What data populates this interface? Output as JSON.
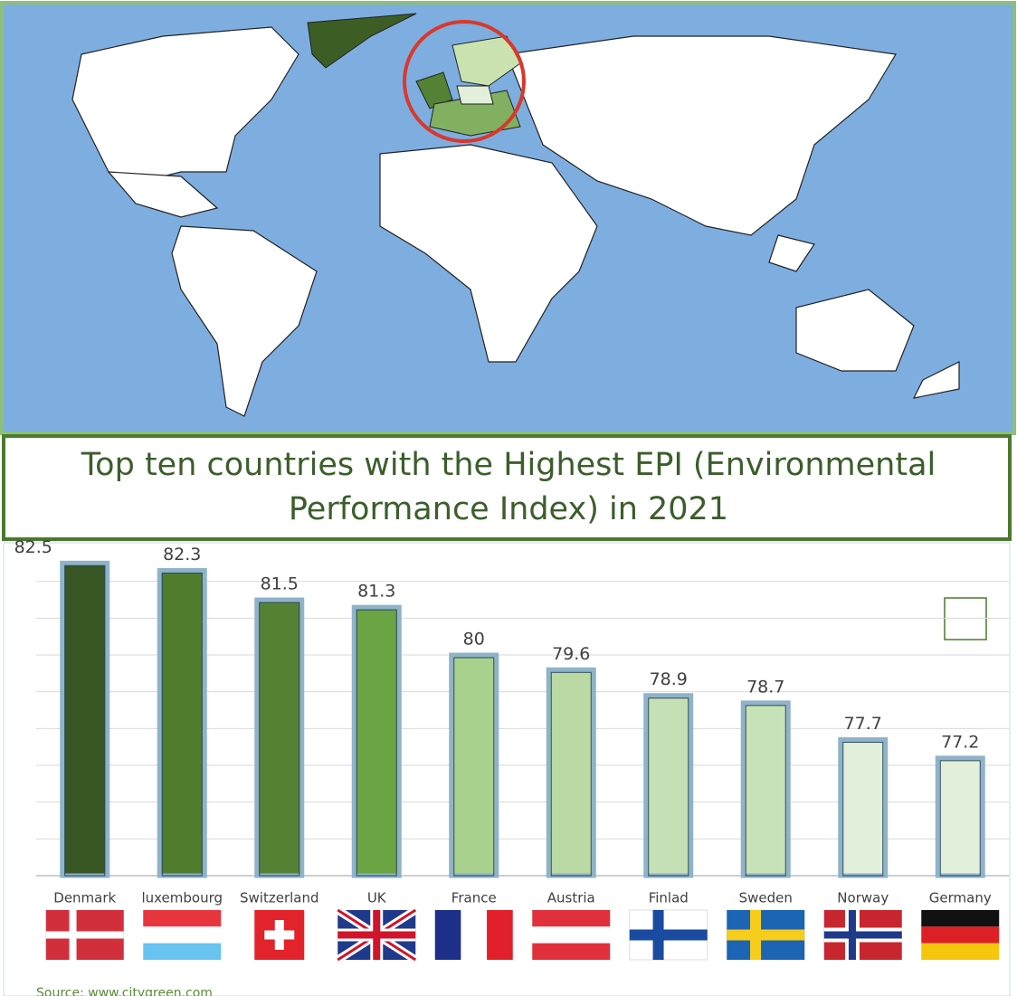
{
  "chart_data": {
    "type": "bar",
    "title": "Top ten countries with the Highest EPI (Environmental Performance Index) in 2021",
    "categories": [
      "Denmark",
      "luxembourg",
      "Switzerland",
      "UK",
      "France",
      "Austria",
      "Finlad",
      "Sweden",
      "Norway",
      "Germany"
    ],
    "values": [
      82.5,
      82.3,
      81.5,
      81.3,
      80,
      79.6,
      78.9,
      78.7,
      77.7,
      77.2
    ],
    "colors": [
      "#375623",
      "#4e7d2e",
      "#548235",
      "#6aa443",
      "#a9d18e",
      "#bad9a4",
      "#c5e0b4",
      "#c8e2b7",
      "#e2efda",
      "#e2efda"
    ],
    "ylim": [
      74,
      83
    ],
    "yticks": [
      74,
      75,
      76,
      77,
      78,
      79,
      80,
      81,
      82
    ],
    "grid": true,
    "source": "Source: www.citygreen.com"
  }
}
